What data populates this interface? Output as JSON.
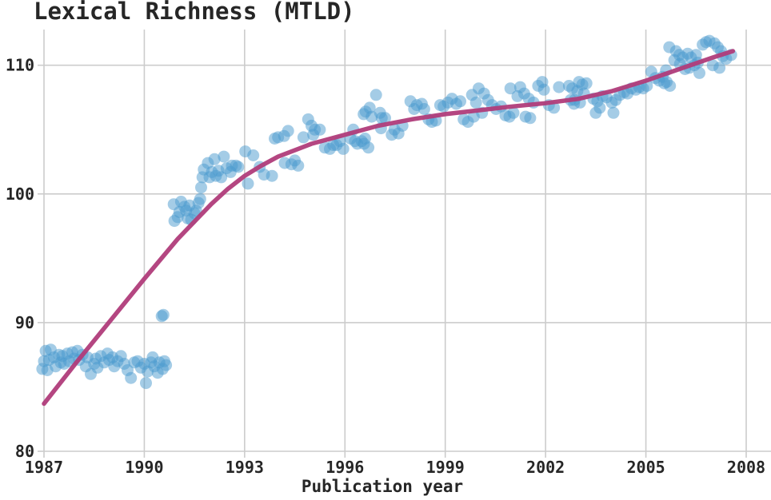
{
  "chart": {
    "title": "Lexical Richness (MTLD)",
    "xlabel": "Publication year",
    "colors": {
      "scatter_fill": "#4a9ace",
      "trend_line": "#b03c7a",
      "grid": "#cccccc",
      "text": "#262626",
      "background": "#ffffff"
    }
  },
  "chart_data": {
    "type": "scatter",
    "title": "Lexical Richness (MTLD)",
    "xlabel": "Publication year",
    "ylabel": "",
    "xlim": [
      1986.8,
      2008.6
    ],
    "ylim": [
      80,
      112.9
    ],
    "xticks": [
      1987,
      1990,
      1993,
      1996,
      1999,
      2002,
      2005,
      2008
    ],
    "yticks": [
      80,
      90,
      100,
      110
    ],
    "grid": true,
    "legend": "none",
    "series": [
      {
        "name": "mtld-by-year-scatter",
        "type": "scatter",
        "color": "#4a9ace",
        "opacity": 0.5,
        "marker_radius": 7.5,
        "points": [
          [
            1986.95,
            86.4
          ],
          [
            1987.0,
            87.0
          ],
          [
            1987.05,
            87.8
          ],
          [
            1987.1,
            86.3
          ],
          [
            1987.15,
            87.1
          ],
          [
            1987.2,
            87.9
          ],
          [
            1987.3,
            87.3
          ],
          [
            1987.35,
            86.6
          ],
          [
            1987.45,
            87.5
          ],
          [
            1987.5,
            86.9
          ],
          [
            1987.55,
            87.4
          ],
          [
            1987.6,
            86.8
          ],
          [
            1987.7,
            87.6
          ],
          [
            1987.75,
            87.0
          ],
          [
            1987.85,
            87.7
          ],
          [
            1987.9,
            87.2
          ],
          [
            1988.0,
            87.8
          ],
          [
            1988.05,
            87.1
          ],
          [
            1988.15,
            87.5
          ],
          [
            1988.25,
            86.6
          ],
          [
            1988.3,
            87.3
          ],
          [
            1988.4,
            86.0
          ],
          [
            1988.5,
            86.8
          ],
          [
            1988.55,
            87.2
          ],
          [
            1988.6,
            86.5
          ],
          [
            1988.7,
            87.4
          ],
          [
            1988.8,
            86.9
          ],
          [
            1988.9,
            87.6
          ],
          [
            1988.95,
            87.1
          ],
          [
            1989.05,
            87.3
          ],
          [
            1989.1,
            86.6
          ],
          [
            1989.2,
            87.0
          ],
          [
            1989.3,
            87.4
          ],
          [
            1989.4,
            86.8
          ],
          [
            1989.5,
            86.3
          ],
          [
            1989.6,
            85.7
          ],
          [
            1989.7,
            86.9
          ],
          [
            1989.8,
            87.0
          ],
          [
            1989.9,
            86.5
          ],
          [
            1990.0,
            86.8
          ],
          [
            1990.05,
            85.3
          ],
          [
            1990.1,
            86.2
          ],
          [
            1990.2,
            86.9
          ],
          [
            1990.25,
            87.3
          ],
          [
            1990.3,
            86.6
          ],
          [
            1990.4,
            86.1
          ],
          [
            1990.45,
            86.9
          ],
          [
            1990.55,
            86.4
          ],
          [
            1990.6,
            87.0
          ],
          [
            1990.65,
            86.7
          ],
          [
            1990.52,
            90.5
          ],
          [
            1990.57,
            90.6
          ],
          [
            1990.88,
            99.2
          ],
          [
            1990.9,
            97.9
          ],
          [
            1991.0,
            98.2
          ],
          [
            1991.05,
            98.6
          ],
          [
            1991.1,
            99.4
          ],
          [
            1991.2,
            99.0
          ],
          [
            1991.25,
            98.7
          ],
          [
            1991.3,
            98.1
          ],
          [
            1991.35,
            99.1
          ],
          [
            1991.4,
            98.0
          ],
          [
            1991.5,
            98.5
          ],
          [
            1991.55,
            98.7
          ],
          [
            1991.62,
            99.3
          ],
          [
            1991.67,
            99.6
          ],
          [
            1991.7,
            100.5
          ],
          [
            1991.74,
            101.3
          ],
          [
            1991.78,
            101.9
          ],
          [
            1991.9,
            102.4
          ],
          [
            1991.95,
            101.3
          ],
          [
            1992.02,
            101.7
          ],
          [
            1992.1,
            102.7
          ],
          [
            1992.14,
            101.4
          ],
          [
            1992.22,
            101.8
          ],
          [
            1992.3,
            101.3
          ],
          [
            1992.38,
            102.9
          ],
          [
            1992.46,
            102.0
          ],
          [
            1992.58,
            101.7
          ],
          [
            1992.62,
            102.2
          ],
          [
            1992.74,
            102.2
          ],
          [
            1992.81,
            102.1
          ],
          [
            1993.02,
            103.3
          ],
          [
            1993.1,
            100.8
          ],
          [
            1993.26,
            103.0
          ],
          [
            1993.45,
            102.1
          ],
          [
            1993.58,
            101.5
          ],
          [
            1993.82,
            101.4
          ],
          [
            1993.9,
            104.3
          ],
          [
            1994.0,
            104.4
          ],
          [
            1994.18,
            104.5
          ],
          [
            1994.2,
            102.4
          ],
          [
            1994.3,
            104.9
          ],
          [
            1994.4,
            102.3
          ],
          [
            1994.5,
            102.6
          ],
          [
            1994.6,
            102.2
          ],
          [
            1994.76,
            104.4
          ],
          [
            1994.9,
            105.8
          ],
          [
            1995.0,
            105.3
          ],
          [
            1995.05,
            104.6
          ],
          [
            1995.1,
            105.0
          ],
          [
            1995.25,
            105.0
          ],
          [
            1995.4,
            103.6
          ],
          [
            1995.55,
            103.5
          ],
          [
            1995.65,
            103.8
          ],
          [
            1995.75,
            103.8
          ],
          [
            1995.85,
            104.1
          ],
          [
            1995.95,
            103.5
          ],
          [
            1996.17,
            104.3
          ],
          [
            1996.25,
            105.0
          ],
          [
            1996.3,
            104.1
          ],
          [
            1996.37,
            103.9
          ],
          [
            1996.5,
            104.1
          ],
          [
            1996.56,
            106.2
          ],
          [
            1996.6,
            104.3
          ],
          [
            1996.62,
            106.4
          ],
          [
            1996.57,
            103.9
          ],
          [
            1996.7,
            103.6
          ],
          [
            1996.74,
            106.7
          ],
          [
            1996.8,
            106.0
          ],
          [
            1996.93,
            107.7
          ],
          [
            1997.05,
            106.3
          ],
          [
            1997.08,
            105.1
          ],
          [
            1997.1,
            105.9
          ],
          [
            1997.2,
            105.9
          ],
          [
            1997.4,
            104.6
          ],
          [
            1997.48,
            105.0
          ],
          [
            1997.6,
            104.7
          ],
          [
            1997.72,
            105.3
          ],
          [
            1997.96,
            107.2
          ],
          [
            1998.07,
            106.6
          ],
          [
            1998.15,
            106.9
          ],
          [
            1998.3,
            107.0
          ],
          [
            1998.37,
            106.6
          ],
          [
            1998.5,
            105.8
          ],
          [
            1998.6,
            105.6
          ],
          [
            1998.72,
            105.7
          ],
          [
            1998.85,
            106.9
          ],
          [
            1998.95,
            106.8
          ],
          [
            1999.08,
            107.1
          ],
          [
            1999.2,
            107.4
          ],
          [
            1999.33,
            107.0
          ],
          [
            1999.45,
            107.2
          ],
          [
            1999.55,
            105.8
          ],
          [
            1999.68,
            105.6
          ],
          [
            1999.8,
            107.7
          ],
          [
            1999.85,
            106.0
          ],
          [
            1999.92,
            107.1
          ],
          [
            2000.0,
            108.2
          ],
          [
            2000.1,
            106.3
          ],
          [
            2000.16,
            107.8
          ],
          [
            2000.28,
            107.3
          ],
          [
            2000.4,
            106.9
          ],
          [
            2000.52,
            106.6
          ],
          [
            2000.67,
            106.8
          ],
          [
            2000.8,
            106.1
          ],
          [
            2000.92,
            106.0
          ],
          [
            2000.95,
            108.2
          ],
          [
            2001.04,
            106.3
          ],
          [
            2001.16,
            107.6
          ],
          [
            2001.24,
            108.3
          ],
          [
            2001.36,
            107.8
          ],
          [
            2001.4,
            106.0
          ],
          [
            2001.5,
            107.4
          ],
          [
            2001.54,
            105.9
          ],
          [
            2001.64,
            107.1
          ],
          [
            2001.78,
            108.4
          ],
          [
            2001.9,
            108.7
          ],
          [
            2001.95,
            108.1
          ],
          [
            2002.1,
            106.9
          ],
          [
            2002.25,
            106.7
          ],
          [
            2002.4,
            108.3
          ],
          [
            2002.7,
            108.4
          ],
          [
            2002.75,
            107.3
          ],
          [
            2002.85,
            107.0
          ],
          [
            2002.8,
            108.2
          ],
          [
            2002.87,
            107.3
          ],
          [
            2002.95,
            108.0
          ],
          [
            2003.0,
            108.7
          ],
          [
            2003.03,
            107.1
          ],
          [
            2003.1,
            108.5
          ],
          [
            2003.15,
            107.8
          ],
          [
            2003.22,
            108.6
          ],
          [
            2003.43,
            107.4
          ],
          [
            2003.5,
            106.3
          ],
          [
            2003.55,
            107.2
          ],
          [
            2003.62,
            106.7
          ],
          [
            2003.7,
            107.6
          ],
          [
            2003.82,
            107.5
          ],
          [
            2003.98,
            107.1
          ],
          [
            2004.03,
            106.3
          ],
          [
            2004.1,
            107.3
          ],
          [
            2004.22,
            107.7
          ],
          [
            2004.35,
            107.9
          ],
          [
            2004.45,
            107.8
          ],
          [
            2004.57,
            108.2
          ],
          [
            2004.7,
            108.1
          ],
          [
            2004.8,
            108.3
          ],
          [
            2004.92,
            108.2
          ],
          [
            2005.03,
            108.4
          ],
          [
            2005.16,
            109.5
          ],
          [
            2005.28,
            109.0
          ],
          [
            2005.4,
            108.8
          ],
          [
            2005.5,
            109.1
          ],
          [
            2005.62,
            108.7
          ],
          [
            2005.55,
            108.6
          ],
          [
            2005.6,
            109.6
          ],
          [
            2005.7,
            111.4
          ],
          [
            2005.72,
            108.4
          ],
          [
            2005.85,
            110.4
          ],
          [
            2005.9,
            111.1
          ],
          [
            2006.0,
            110.8
          ],
          [
            2006.02,
            110.1
          ],
          [
            2006.1,
            110.6
          ],
          [
            2006.17,
            109.7
          ],
          [
            2006.25,
            110.9
          ],
          [
            2006.3,
            109.8
          ],
          [
            2006.35,
            110.6
          ],
          [
            2006.45,
            110.0
          ],
          [
            2006.5,
            110.8
          ],
          [
            2006.55,
            110.2
          ],
          [
            2006.6,
            109.4
          ],
          [
            2006.7,
            111.6
          ],
          [
            2006.8,
            111.8
          ],
          [
            2006.9,
            111.9
          ],
          [
            2007.0,
            110.0
          ],
          [
            2007.05,
            111.7
          ],
          [
            2007.15,
            111.4
          ],
          [
            2007.2,
            109.8
          ],
          [
            2007.25,
            111.1
          ],
          [
            2007.3,
            110.7
          ],
          [
            2007.4,
            110.5
          ],
          [
            2007.55,
            110.8
          ]
        ]
      },
      {
        "name": "loess-trend-line",
        "type": "line",
        "color": "#b03c7a",
        "opacity": 0.95,
        "stroke_width": 5.5,
        "points": [
          [
            1987.0,
            83.7
          ],
          [
            1988.0,
            87.0
          ],
          [
            1989.0,
            90.2
          ],
          [
            1990.0,
            93.4
          ],
          [
            1991.0,
            96.5
          ],
          [
            1992.0,
            99.2
          ],
          [
            1992.5,
            100.4
          ],
          [
            1993.0,
            101.4
          ],
          [
            1993.5,
            102.2
          ],
          [
            1994.0,
            102.9
          ],
          [
            1995.0,
            103.9
          ],
          [
            1996.0,
            104.6
          ],
          [
            1997.0,
            105.3
          ],
          [
            1998.0,
            105.8
          ],
          [
            1999.0,
            106.2
          ],
          [
            2000.0,
            106.5
          ],
          [
            2001.0,
            106.8
          ],
          [
            2002.0,
            107.05
          ],
          [
            2003.0,
            107.4
          ],
          [
            2004.0,
            108.0
          ],
          [
            2005.0,
            108.8
          ],
          [
            2006.0,
            109.7
          ],
          [
            2007.0,
            110.6
          ],
          [
            2007.6,
            111.1
          ]
        ]
      }
    ]
  }
}
